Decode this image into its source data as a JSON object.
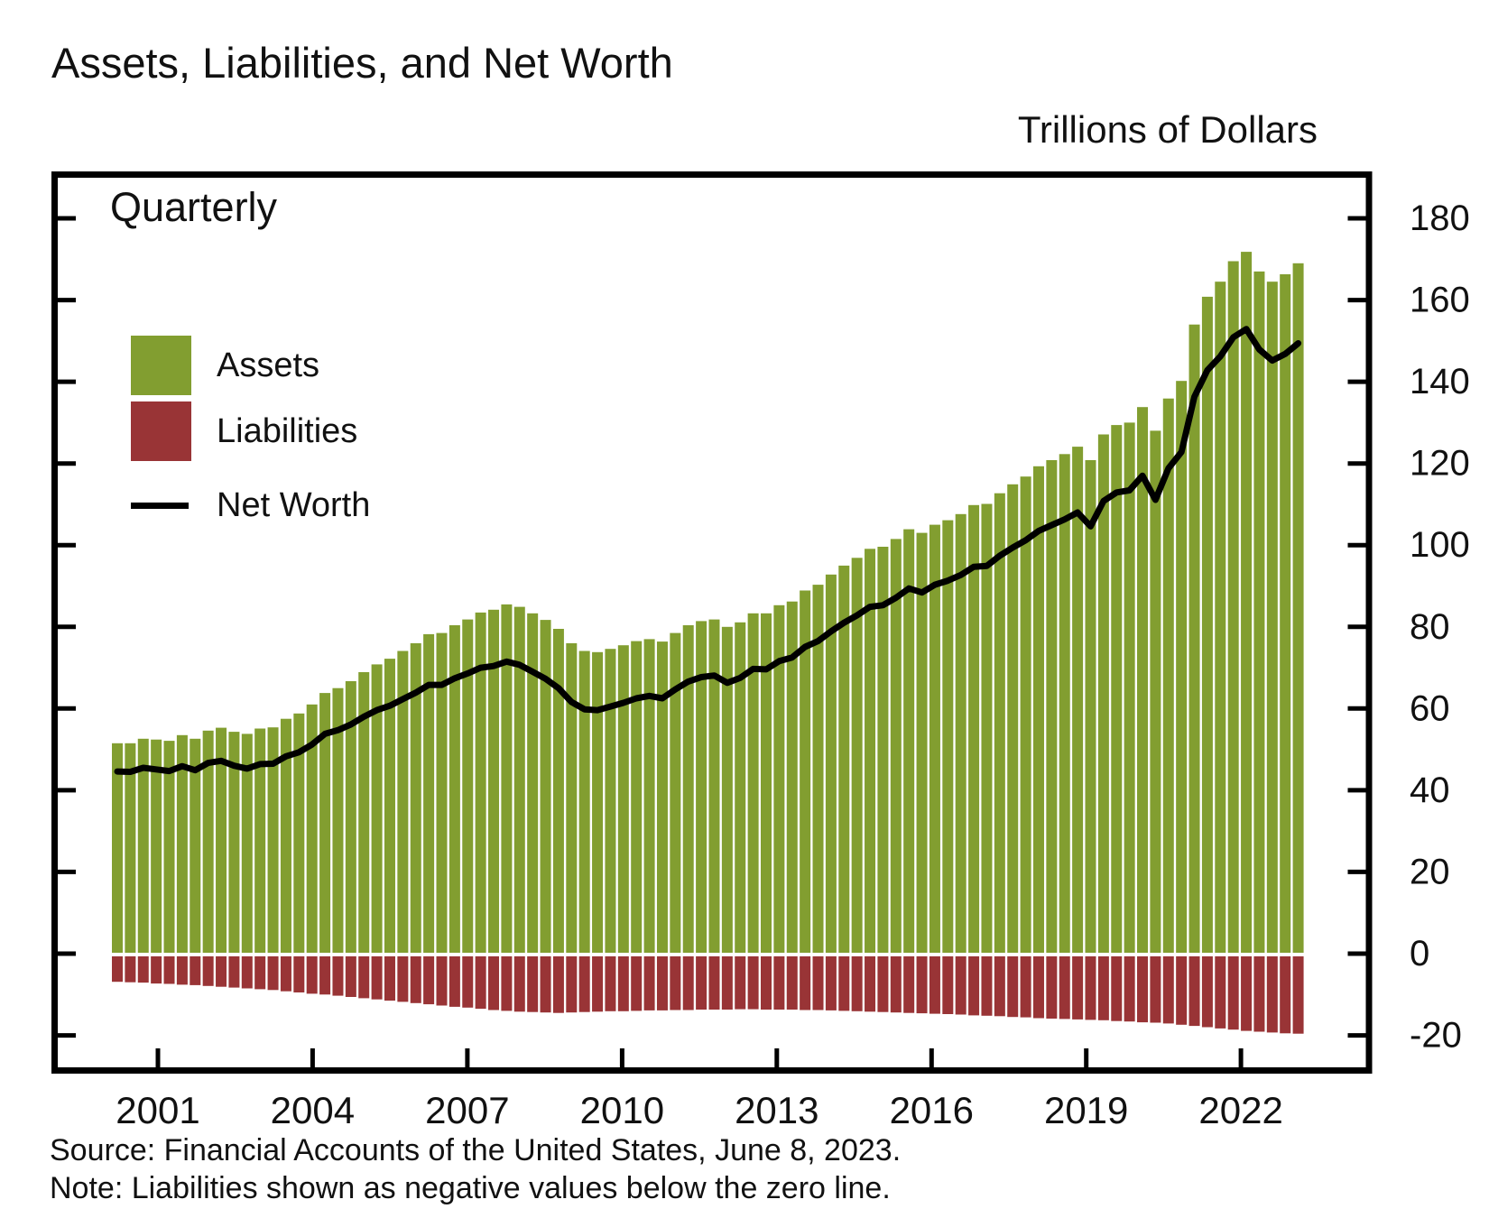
{
  "title": "Assets, Liabilities, and Net Worth",
  "units_label": "Trillions of Dollars",
  "frequency_label": "Quarterly",
  "legend": {
    "assets_label": "Assets",
    "liabilities_label": "Liabilities",
    "net_worth_label": "Net Worth"
  },
  "source_line": "Source: Financial Accounts of the United States, June 8, 2023.",
  "note_line": "Note: Liabilities shown as negative values below the zero line.",
  "colors": {
    "assets": "#829e30",
    "liabilities": "#993436",
    "net_worth": "#000000",
    "axis": "#000000",
    "text": "#111111"
  },
  "chart_data": {
    "type": "bar",
    "title": "Assets, Liabilities, and Net Worth",
    "xlabel": "",
    "ylabel": "Trillions of Dollars",
    "frequency": "Quarterly",
    "start_quarter": "2000Q1",
    "end_quarter": "2022Q4",
    "x_tick_years": [
      2001,
      2004,
      2007,
      2010,
      2013,
      2016,
      2019,
      2022
    ],
    "y_ticks": [
      -20,
      0,
      20,
      40,
      60,
      80,
      100,
      120,
      140,
      160,
      180
    ],
    "ylim": [
      -29,
      191
    ],
    "grid": false,
    "legend_position": "upper-left-inside",
    "series": [
      {
        "name": "Assets",
        "style": "bar",
        "values": [
          51.5,
          51.5,
          52.6,
          52.4,
          52.1,
          53.5,
          52.6,
          54.6,
          55.3,
          54.3,
          53.8,
          55.1,
          55.4,
          57.5,
          58.8,
          61.0,
          63.8,
          65.0,
          66.7,
          68.9,
          70.8,
          72.2,
          74.1,
          76.0,
          78.2,
          78.5,
          80.4,
          81.8,
          83.5,
          84.2,
          85.5,
          84.9,
          83.3,
          81.7,
          79.5,
          76.0,
          74.1,
          73.8,
          74.6,
          75.5,
          76.5,
          77.0,
          76.4,
          78.5,
          80.4,
          81.4,
          81.8,
          80.0,
          81.1,
          83.3,
          83.3,
          85.3,
          86.2,
          88.9,
          90.3,
          92.8,
          95.0,
          96.9,
          99.1,
          99.6,
          101.5,
          103.9,
          103.0,
          105.0,
          106.1,
          107.6,
          109.8,
          110.1,
          112.7,
          114.9,
          116.8,
          119.3,
          120.8,
          122.3,
          124.1,
          120.8,
          127.1,
          129.4,
          130.0,
          133.8,
          128.0,
          135.9,
          140.2,
          154.0,
          160.8,
          164.5,
          169.5,
          171.8,
          167.0,
          164.5,
          166.3,
          169.0
        ]
      },
      {
        "name": "Liabilities",
        "style": "bar",
        "values": [
          -6.9,
          -7.0,
          -7.1,
          -7.3,
          -7.4,
          -7.6,
          -7.7,
          -7.9,
          -8.1,
          -8.3,
          -8.5,
          -8.7,
          -8.9,
          -9.2,
          -9.5,
          -9.8,
          -10.0,
          -10.3,
          -10.6,
          -10.9,
          -11.2,
          -11.5,
          -11.8,
          -12.1,
          -12.4,
          -12.7,
          -13.0,
          -13.2,
          -13.5,
          -13.8,
          -14.0,
          -14.2,
          -14.3,
          -14.4,
          -14.5,
          -14.4,
          -14.3,
          -14.2,
          -14.1,
          -14.1,
          -14.0,
          -13.9,
          -13.9,
          -13.8,
          -13.8,
          -13.7,
          -13.7,
          -13.7,
          -13.6,
          -13.6,
          -13.7,
          -13.7,
          -13.7,
          -13.8,
          -13.8,
          -13.9,
          -14.0,
          -14.1,
          -14.2,
          -14.3,
          -14.4,
          -14.5,
          -14.6,
          -14.7,
          -14.8,
          -14.9,
          -15.1,
          -15.2,
          -15.3,
          -15.5,
          -15.6,
          -15.8,
          -15.9,
          -16.0,
          -16.1,
          -16.2,
          -16.3,
          -16.5,
          -16.6,
          -16.8,
          -16.9,
          -17.1,
          -17.4,
          -17.7,
          -18.0,
          -18.3,
          -18.6,
          -18.9,
          -19.1,
          -19.3,
          -19.5,
          -19.6
        ]
      },
      {
        "name": "Net Worth",
        "style": "line",
        "values": [
          44.6,
          44.5,
          45.5,
          45.1,
          44.7,
          45.9,
          44.9,
          46.7,
          47.2,
          46.0,
          45.3,
          46.4,
          46.5,
          48.3,
          49.3,
          51.2,
          53.8,
          54.7,
          56.1,
          58.0,
          59.6,
          60.7,
          62.3,
          63.9,
          65.8,
          65.8,
          67.4,
          68.6,
          70.0,
          70.4,
          71.5,
          70.7,
          69.0,
          67.3,
          65.0,
          61.6,
          59.8,
          59.6,
          60.5,
          61.4,
          62.5,
          63.1,
          62.5,
          64.7,
          66.6,
          67.7,
          68.1,
          66.3,
          67.5,
          69.7,
          69.6,
          71.6,
          72.5,
          75.1,
          76.5,
          78.9,
          81.0,
          82.8,
          84.9,
          85.3,
          87.1,
          89.4,
          88.4,
          90.3,
          91.3,
          92.7,
          94.7,
          94.9,
          97.4,
          99.4,
          101.2,
          103.5,
          104.9,
          106.3,
          108.0,
          104.6,
          110.8,
          112.9,
          113.4,
          117.0,
          111.1,
          118.8,
          122.8,
          136.3,
          142.8,
          146.2,
          150.9,
          152.9,
          147.9,
          145.2,
          146.8,
          149.4
        ]
      }
    ]
  }
}
